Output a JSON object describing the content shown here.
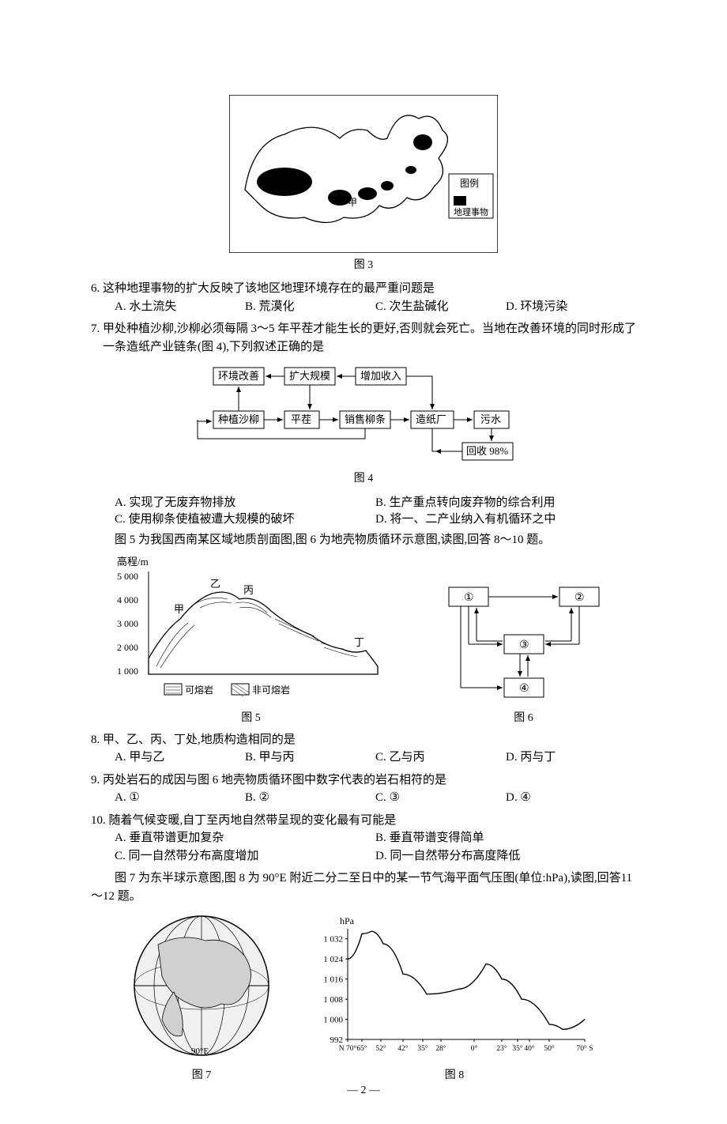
{
  "figures": {
    "fig3": {
      "label": "图 3",
      "legend_title": "图例",
      "legend_item": "地理事物"
    },
    "fig4": {
      "label": "图 4",
      "nodes": {
        "env": "环境改善",
        "expand": "扩大规模",
        "income": "增加收入",
        "plant": "种植沙柳",
        "cut": "平茬",
        "sell": "销售柳条",
        "factory": "造纸厂",
        "sewage": "污水",
        "recycle": "回收 98%"
      }
    },
    "fig5": {
      "label": "图 5",
      "yaxis_label": "高程/m",
      "yticks": [
        "5 000",
        "4 000",
        "3 000",
        "2 000",
        "1 000"
      ],
      "point_labels": {
        "a": "甲",
        "b": "乙",
        "c": "丙",
        "d": "丁"
      },
      "legend": {
        "soluble": "可熔岩",
        "insoluble": "非可熔岩"
      }
    },
    "fig6": {
      "label": "图 6",
      "nodes": {
        "n1": "①",
        "n2": "②",
        "n3": "③",
        "n4": "④"
      }
    },
    "fig7": {
      "label": "图 7",
      "meridian": "90°E"
    },
    "fig8": {
      "label": "图 8",
      "yaxis_unit": "hPa",
      "yticks": [
        "1 032",
        "1 024",
        "1 016",
        "1 008",
        "1 000",
        "992"
      ],
      "ymin": 992,
      "ymax": 1036,
      "xticks": [
        "N 70°",
        "65°",
        "52°",
        "42°",
        "35°",
        "28°",
        "0°",
        "23°",
        "35°",
        "40°",
        "50°",
        "70° S"
      ],
      "series": [
        [
          0,
          1024
        ],
        [
          18,
          1034
        ],
        [
          30,
          1035
        ],
        [
          45,
          1030
        ],
        [
          70,
          1018
        ],
        [
          100,
          1010
        ],
        [
          140,
          1012
        ],
        [
          175,
          1022
        ],
        [
          195,
          1016
        ],
        [
          220,
          1008
        ],
        [
          255,
          998
        ],
        [
          272,
          996
        ],
        [
          300,
          1000
        ]
      ],
      "line_color": "#000000",
      "grid_color": "#000000",
      "background": "#ffffff"
    }
  },
  "questions": {
    "q6": {
      "stem": "6. 这种地理事物的扩大反映了该地区地理环境存在的最严重问题是",
      "opts": {
        "A": "A. 水土流失",
        "B": "B. 荒漠化",
        "C": "C. 次生盐碱化",
        "D": "D. 环境污染"
      }
    },
    "q7": {
      "stem": "7. 甲处种植沙柳,沙柳必须每隔 3～5 年平茬才能生长的更好,否则就会死亡。当地在改善环境的同时形成了一条造纸产业链条(图 4),下列叙述正确的是",
      "opts": {
        "A": "A. 实现了无废弃物排放",
        "B": "B. 生产重点转向废弃物的综合利用",
        "C": "C. 使用柳条使植被遭大规模的破坏",
        "D": "D. 将一、二产业纳入有机循环之中"
      }
    },
    "intro_8_10": "图 5 为我国西南某区域地质剖面图,图 6 为地壳物质循环示意图,读图,回答 8～10 题。",
    "q8": {
      "stem": "8. 甲、乙、丙、丁处,地质构造相同的是",
      "opts": {
        "A": "A. 甲与乙",
        "B": "B. 甲与丙",
        "C": "C. 乙与丙",
        "D": "D. 丙与丁"
      }
    },
    "q9": {
      "stem": "9. 丙处岩石的成因与图 6 地壳物质循环图中数字代表的岩石相符的是",
      "opts": {
        "A": "A. ①",
        "B": "B. ②",
        "C": "C. ③",
        "D": "D. ④"
      }
    },
    "q10": {
      "stem": "10. 随着气候变暖,自丁至丙地自然带呈现的变化最有可能是",
      "opts": {
        "A": "A. 垂直带谱更加复杂",
        "B": "B. 垂直带谱变得简单",
        "C": "C. 同一自然带分布高度增加",
        "D": "D. 同一自然带分布高度降低"
      }
    },
    "intro_11_12": "图 7 为东半球示意图,图 8 为 90°E 附近二分二至日中的某一节气海平面气压图(单位:hPa),读图,回答11～12 题。"
  },
  "page_number": "— 2 —"
}
